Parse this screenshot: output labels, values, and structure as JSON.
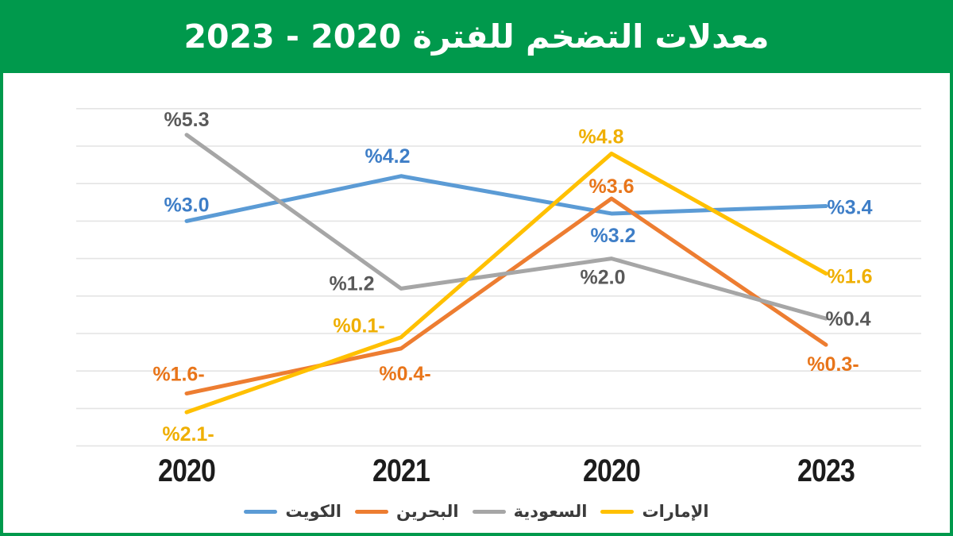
{
  "page": {
    "frame_color": "#00994C",
    "panel_color": "#FFFFFF"
  },
  "header": {
    "title": "معدلات التضخم للفترة 2020 - 2023"
  },
  "chart_data": {
    "type": "line",
    "title": "معدلات التضخم للفترة 2020 - 2023",
    "categories": [
      "2020",
      "2021",
      "2020",
      "2023"
    ],
    "series": [
      {
        "name": "الكويت",
        "color": "#5B9BD5",
        "label_color": "#3E7EC7",
        "values": [
          3.0,
          4.2,
          3.2,
          3.4
        ],
        "point_labels": [
          "%3.0",
          "%4.2",
          "%3.2",
          "%3.4"
        ]
      },
      {
        "name": "البحرين",
        "color": "#ED7D31",
        "label_color": "#E8751A",
        "values": [
          -1.6,
          -0.4,
          3.6,
          -0.3
        ],
        "point_labels": [
          "%1.6-",
          "%0.4-",
          "%3.6",
          "%0.3-"
        ]
      },
      {
        "name": "السعودية",
        "color": "#A6A6A6",
        "label_color": "#595959",
        "values": [
          5.3,
          1.2,
          2.0,
          0.4
        ],
        "point_labels": [
          "%5.3",
          "%1.2",
          "%2.0",
          "%0.4"
        ]
      },
      {
        "name": "الإمارات",
        "color": "#FFC000",
        "label_color": "#EFAF00",
        "values": [
          -2.1,
          -0.1,
          4.8,
          1.6
        ],
        "point_labels": [
          "%2.1-",
          "%0.1-",
          "%4.8",
          "%1.6"
        ]
      }
    ],
    "ylim": [
      -3,
      6
    ],
    "gridline_step": 1,
    "grid": true,
    "legend_position": "bottom",
    "label_offsets": [
      [
        [
          0,
          -20
        ],
        [
          -17,
          -25
        ],
        [
          2,
          28
        ],
        [
          30,
          2
        ]
      ],
      [
        [
          -10,
          -24
        ],
        [
          5,
          32
        ],
        [
          0,
          -15
        ],
        [
          9,
          25
        ]
      ],
      [
        [
          0,
          -19
        ],
        [
          -62,
          -6
        ],
        [
          -11,
          24
        ],
        [
          28,
          1
        ]
      ],
      [
        [
          2,
          28
        ],
        [
          -53,
          -14
        ],
        [
          -13,
          -21
        ],
        [
          30,
          4
        ]
      ]
    ]
  }
}
